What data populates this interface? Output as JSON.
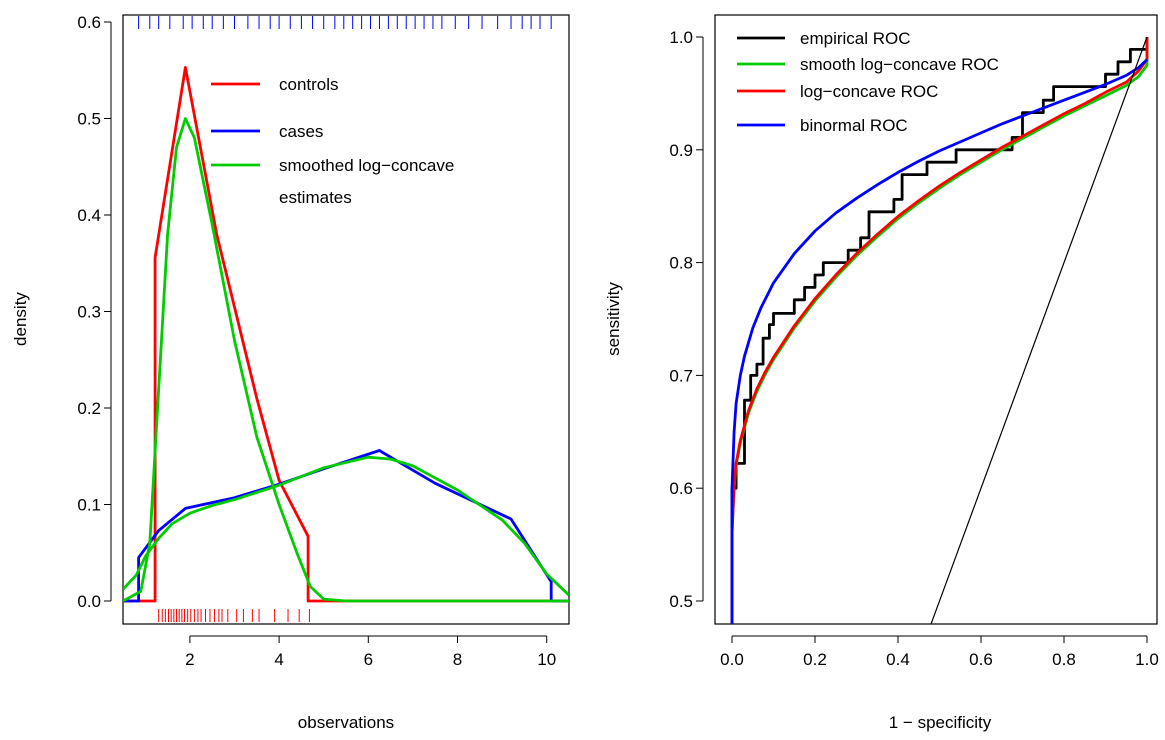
{
  "chart_data": [
    {
      "type": "line",
      "xlabel": "observations",
      "ylabel": "density",
      "xlim": [
        0.5,
        10.5
      ],
      "ylim": [
        0,
        0.6
      ],
      "xticks": [
        2,
        4,
        6,
        8,
        10
      ],
      "yticks": [
        0.0,
        0.1,
        0.2,
        0.3,
        0.4,
        0.5,
        0.6
      ],
      "xtick_labels": [
        "2",
        "4",
        "6",
        "8",
        "10"
      ],
      "ytick_labels": [
        "0.0",
        "0.1",
        "0.2",
        "0.3",
        "0.4",
        "0.5",
        "0.6"
      ],
      "grid": false,
      "legend_position": "top-center",
      "legend": [
        {
          "label": "controls",
          "color": "#ff0000"
        },
        {
          "label": "cases",
          "color": "#0000ff"
        },
        {
          "label": "smoothed log−concave",
          "color": "#00cc00"
        },
        {
          "label": "estimates",
          "color": null
        }
      ],
      "series": [
        {
          "name": "controls",
          "color": "#ff0000",
          "x": [
            0.5,
            1.22,
            1.22,
            1.9,
            2.6,
            3.5,
            4.0,
            4.65,
            4.65,
            10.5
          ],
          "y": [
            0,
            0,
            0.356,
            0.553,
            0.38,
            0.21,
            0.125,
            0.067,
            0,
            0
          ]
        },
        {
          "name": "cases",
          "color": "#0000ff",
          "x": [
            0.5,
            0.85,
            0.85,
            1.3,
            1.9,
            3.0,
            4.0,
            5.0,
            6.25,
            7.5,
            9.2,
            10.1,
            10.1,
            10.5
          ],
          "y": [
            0,
            0,
            0.045,
            0.073,
            0.096,
            0.107,
            0.121,
            0.137,
            0.156,
            0.122,
            0.085,
            0.02,
            0,
            0
          ]
        },
        {
          "name": "smoothed log−concave",
          "color": "#00cc00",
          "x": [
            0.5,
            0.9,
            1.1,
            1.3,
            1.5,
            1.7,
            1.9,
            2.1,
            2.5,
            3.0,
            3.5,
            4.0,
            4.4,
            4.7,
            5.0,
            5.5,
            10.5
          ],
          "y": [
            0.0,
            0.01,
            0.06,
            0.22,
            0.38,
            0.47,
            0.5,
            0.48,
            0.39,
            0.27,
            0.17,
            0.1,
            0.05,
            0.015,
            0.002,
            0.0,
            0.0
          ]
        },
        {
          "name": "smoothed log−concave",
          "color": "#00cc00",
          "x": [
            0.5,
            0.8,
            1.0,
            1.3,
            1.6,
            2.0,
            2.5,
            3.0,
            4.0,
            5.0,
            6.0,
            6.5,
            7.0,
            8.0,
            9.0,
            9.5,
            10.0,
            10.5
          ],
          "y": [
            0.012,
            0.027,
            0.046,
            0.065,
            0.08,
            0.091,
            0.099,
            0.105,
            0.12,
            0.138,
            0.149,
            0.147,
            0.14,
            0.115,
            0.084,
            0.06,
            0.028,
            0.006
          ]
        }
      ],
      "rug": {
        "controls": {
          "color": "#ff0000",
          "side": "bottom",
          "x": [
            1.3,
            1.38,
            1.45,
            1.52,
            1.58,
            1.64,
            1.7,
            1.76,
            1.82,
            1.88,
            1.95,
            2.02,
            2.1,
            2.18,
            2.25,
            2.35,
            2.45,
            2.55,
            2.65,
            2.72,
            2.85,
            3.05,
            3.2,
            3.4,
            3.55,
            3.9,
            4.2,
            4.45,
            4.68
          ]
        },
        "cases": {
          "color": "#0000ff",
          "side": "top",
          "x": [
            0.85,
            1.1,
            1.3,
            1.55,
            1.85,
            2.05,
            2.3,
            2.5,
            2.75,
            3.0,
            3.3,
            3.55,
            3.8,
            4.0,
            4.25,
            4.5,
            4.75,
            5.0,
            5.25,
            5.45,
            5.65,
            5.85,
            6.05,
            6.25,
            6.45,
            6.65,
            6.85,
            7.05,
            7.25,
            7.45,
            7.65,
            7.95,
            8.25,
            8.55,
            8.9,
            9.2,
            9.45,
            9.65,
            9.85,
            10.1
          ]
        }
      }
    },
    {
      "type": "line",
      "xlabel": "1 − specificity",
      "ylabel": "sensitivity",
      "xlim": [
        0,
        1
      ],
      "ylim": [
        0.48,
        1.0
      ],
      "xticks": [
        0.0,
        0.2,
        0.4,
        0.6,
        0.8,
        1.0
      ],
      "yticks": [
        0.5,
        0.6,
        0.7,
        0.8,
        0.9,
        1.0
      ],
      "xtick_labels": [
        "0.0",
        "0.2",
        "0.4",
        "0.6",
        "0.8",
        "1.0"
      ],
      "ytick_labels": [
        "0.5",
        "0.6",
        "0.7",
        "0.8",
        "0.9",
        "1.0"
      ],
      "grid": false,
      "legend_position": "top-left",
      "legend": [
        {
          "label": "empirical ROC",
          "color": "#000000"
        },
        {
          "label": "smooth log−concave ROC",
          "color": "#00cc00"
        },
        {
          "label": "log−concave ROC",
          "color": "#ff0000"
        },
        {
          "label": "binormal ROC",
          "color": "#0000ff"
        }
      ],
      "series": [
        {
          "name": "empirical ROC",
          "color": "#000000",
          "step": true,
          "x": [
            0.0,
            0.0,
            0.01,
            0.01,
            0.03,
            0.03,
            0.045,
            0.045,
            0.06,
            0.06,
            0.075,
            0.075,
            0.09,
            0.09,
            0.1,
            0.1,
            0.15,
            0.15,
            0.175,
            0.175,
            0.2,
            0.2,
            0.22,
            0.22,
            0.25,
            0.25,
            0.28,
            0.28,
            0.31,
            0.31,
            0.33,
            0.33,
            0.39,
            0.39,
            0.41,
            0.41,
            0.47,
            0.47,
            0.54,
            0.54,
            0.6,
            0.6,
            0.675,
            0.675,
            0.7,
            0.7,
            0.75,
            0.75,
            0.775,
            0.775,
            0.9,
            0.9,
            0.93,
            0.93,
            0.96,
            0.96,
            0.98,
            0.98,
            1.0,
            1.0
          ],
          "y": [
            0.48,
            0.6,
            0.6,
            0.622,
            0.622,
            0.678,
            0.678,
            0.7,
            0.7,
            0.71,
            0.71,
            0.733,
            0.733,
            0.745,
            0.745,
            0.755,
            0.755,
            0.767,
            0.767,
            0.778,
            0.778,
            0.789,
            0.789,
            0.8,
            0.8,
            0.8,
            0.8,
            0.811,
            0.811,
            0.822,
            0.822,
            0.845,
            0.845,
            0.856,
            0.856,
            0.878,
            0.878,
            0.889,
            0.889,
            0.9,
            0.9,
            0.9,
            0.9,
            0.911,
            0.911,
            0.933,
            0.933,
            0.944,
            0.944,
            0.956,
            0.956,
            0.967,
            0.967,
            0.978,
            0.978,
            0.989,
            0.989,
            0.989,
            0.989,
            1.0
          ]
        },
        {
          "name": "smooth log−concave ROC",
          "color": "#00cc00",
          "x": [
            0.0,
            0.0,
            0.005,
            0.01,
            0.02,
            0.04,
            0.06,
            0.08,
            0.1,
            0.15,
            0.2,
            0.25,
            0.3,
            0.35,
            0.4,
            0.45,
            0.5,
            0.55,
            0.6,
            0.65,
            0.7,
            0.75,
            0.8,
            0.85,
            0.9,
            0.95,
            0.98,
            1.0,
            1.0
          ],
          "y": [
            0.48,
            0.56,
            0.6,
            0.62,
            0.64,
            0.667,
            0.686,
            0.701,
            0.714,
            0.742,
            0.766,
            0.787,
            0.806,
            0.823,
            0.839,
            0.853,
            0.866,
            0.878,
            0.889,
            0.9,
            0.91,
            0.92,
            0.93,
            0.939,
            0.948,
            0.957,
            0.965,
            0.975,
            1.0
          ]
        },
        {
          "name": "log−concave ROC",
          "color": "#ff0000",
          "x": [
            0.0,
            0.0,
            0.005,
            0.01,
            0.02,
            0.04,
            0.06,
            0.08,
            0.1,
            0.15,
            0.2,
            0.25,
            0.3,
            0.35,
            0.4,
            0.45,
            0.5,
            0.55,
            0.6,
            0.65,
            0.7,
            0.75,
            0.8,
            0.85,
            0.9,
            0.95,
            0.98,
            1.0,
            1.0
          ],
          "y": [
            0.48,
            0.56,
            0.602,
            0.622,
            0.642,
            0.669,
            0.688,
            0.703,
            0.716,
            0.744,
            0.768,
            0.789,
            0.808,
            0.825,
            0.841,
            0.855,
            0.868,
            0.88,
            0.891,
            0.902,
            0.912,
            0.922,
            0.932,
            0.941,
            0.951,
            0.96,
            0.97,
            0.98,
            1.0
          ]
        },
        {
          "name": "binormal ROC",
          "color": "#0000ff",
          "x": [
            0.0,
            0.0,
            0.005,
            0.01,
            0.02,
            0.03,
            0.05,
            0.07,
            0.1,
            0.15,
            0.2,
            0.25,
            0.3,
            0.35,
            0.4,
            0.45,
            0.5,
            0.55,
            0.6,
            0.65,
            0.7,
            0.75,
            0.8,
            0.85,
            0.9,
            0.95,
            0.98,
            1.0
          ],
          "y": [
            0.48,
            0.6,
            0.65,
            0.675,
            0.7,
            0.717,
            0.742,
            0.76,
            0.782,
            0.808,
            0.828,
            0.844,
            0.857,
            0.869,
            0.88,
            0.89,
            0.899,
            0.907,
            0.915,
            0.923,
            0.93,
            0.937,
            0.944,
            0.951,
            0.958,
            0.966,
            0.973,
            0.98
          ]
        },
        {
          "name": "",
          "color": "#000000",
          "thin": true,
          "x": [
            0.48,
            1.0
          ],
          "y": [
            0.48,
            1.0
          ]
        }
      ]
    }
  ]
}
